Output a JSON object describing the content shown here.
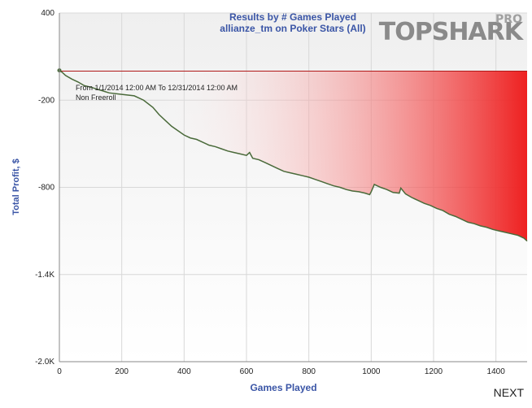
{
  "header": {
    "title_line1": "Results by # Games Played",
    "title_line2": "allianze_tm on Poker Stars (All)"
  },
  "logo": {
    "top": "TOP",
    "shark": "SHARK",
    "pro": "PRO"
  },
  "notes": {
    "date_range": "From 1/1/2014 12:00 AM To 12/31/2014 12:00 AM",
    "filter": "Non Freeroll"
  },
  "nav": {
    "next_label": "NEXT"
  },
  "colors": {
    "line": "#4a6a3a",
    "zero_line": "#b01818",
    "loss_fill_start": "#ffffff",
    "loss_fill_end": "#ee2020",
    "axis_text": "#3a55a6"
  },
  "chart_data": {
    "type": "area",
    "title": "Results by # Games Played",
    "subtitle": "allianze_tm on Poker Stars (All)",
    "xlabel": "Games Played",
    "ylabel": "Total Profit, $",
    "xlim": [
      0,
      1500
    ],
    "ylim": [
      -2000,
      400
    ],
    "x_ticks": [
      0,
      200,
      400,
      600,
      800,
      1000,
      1200,
      1400
    ],
    "y_ticks": [
      400,
      -200,
      -800,
      -1400,
      -2000
    ],
    "y_tick_labels": [
      "400",
      "-200",
      "-800",
      "-1.4K",
      "-2.0K"
    ],
    "grid": true,
    "series": [
      {
        "x": [
          0,
          10,
          20,
          40,
          60,
          80,
          100,
          130,
          160,
          200,
          240,
          270,
          300,
          320,
          340,
          360,
          380,
          400,
          420,
          440,
          460,
          480,
          500,
          520,
          540,
          560,
          580,
          600,
          610,
          620,
          640,
          660,
          680,
          700,
          720,
          740,
          760,
          780,
          800,
          820,
          840,
          860,
          880,
          900,
          920,
          940,
          960,
          980,
          995,
          1000,
          1010,
          1030,
          1050,
          1070,
          1090,
          1095,
          1110,
          1130,
          1150,
          1170,
          1190,
          1210,
          1230,
          1250,
          1270,
          1290,
          1310,
          1330,
          1350,
          1370,
          1390,
          1410,
          1430,
          1450,
          1470,
          1490,
          1500
        ],
        "y": [
          5,
          -10,
          -30,
          -55,
          -75,
          -100,
          -110,
          -130,
          -150,
          -160,
          -170,
          -200,
          -250,
          -300,
          -340,
          -380,
          -410,
          -440,
          -460,
          -470,
          -490,
          -510,
          -520,
          -535,
          -550,
          -560,
          -570,
          -580,
          -560,
          -600,
          -610,
          -630,
          -650,
          -670,
          -690,
          -700,
          -710,
          -720,
          -730,
          -745,
          -760,
          -775,
          -790,
          -800,
          -815,
          -825,
          -830,
          -840,
          -850,
          -830,
          -780,
          -800,
          -815,
          -835,
          -840,
          -805,
          -845,
          -870,
          -890,
          -910,
          -925,
          -945,
          -960,
          -985,
          -1000,
          -1020,
          -1040,
          -1050,
          -1065,
          -1075,
          -1090,
          -1100,
          -1110,
          -1120,
          -1130,
          -1150,
          -1170
        ]
      }
    ]
  }
}
